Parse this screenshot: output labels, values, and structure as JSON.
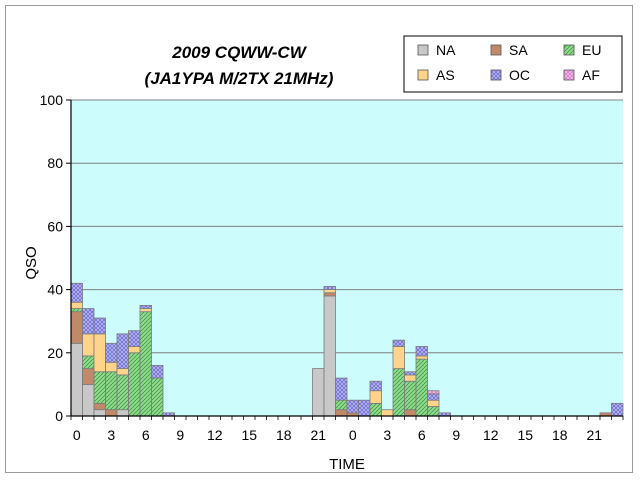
{
  "chart_data": {
    "type": "bar",
    "stacked": true,
    "title": "2009 CQWW-CW",
    "subtitle": "(JA1YPA  M/2TX  21MHz)",
    "xlabel": "TIME",
    "ylabel": "QSO",
    "ylim": [
      0,
      100
    ],
    "yticks": [
      0,
      20,
      40,
      60,
      80,
      100
    ],
    "xtick_labels": [
      "0",
      "3",
      "6",
      "9",
      "12",
      "15",
      "18",
      "21",
      "0",
      "3",
      "6",
      "9",
      "12",
      "15",
      "18",
      "21"
    ],
    "xtick_every": 3,
    "legend_position": "top-right",
    "grid": true,
    "categories": [
      "0",
      "1",
      "2",
      "3",
      "4",
      "5",
      "6",
      "7",
      "8",
      "9",
      "10",
      "11",
      "12",
      "13",
      "14",
      "15",
      "16",
      "17",
      "18",
      "19",
      "20",
      "21",
      "22",
      "23",
      "0",
      "1",
      "2",
      "3",
      "4",
      "5",
      "6",
      "7",
      "8",
      "9",
      "10",
      "11",
      "12",
      "13",
      "14",
      "15",
      "16",
      "17",
      "18",
      "19",
      "20",
      "21",
      "22",
      "23"
    ],
    "series": [
      {
        "name": "NA",
        "color": "#c8c8c8",
        "values": [
          23,
          10,
          2,
          0,
          2,
          0,
          0,
          0,
          0,
          0,
          0,
          0,
          0,
          0,
          0,
          0,
          0,
          0,
          0,
          0,
          0,
          15,
          38,
          0,
          0,
          0,
          0,
          0,
          0,
          0,
          0,
          0,
          0,
          0,
          0,
          0,
          0,
          0,
          0,
          0,
          0,
          0,
          0,
          0,
          0,
          0,
          0,
          0
        ]
      },
      {
        "name": "SA",
        "color": "#c08a6a",
        "values": [
          10,
          5,
          2,
          2,
          0,
          0,
          0,
          0,
          0,
          0,
          0,
          0,
          0,
          0,
          0,
          0,
          0,
          0,
          0,
          0,
          0,
          0,
          1,
          2,
          1,
          0,
          0,
          0,
          0,
          2,
          0,
          0,
          0,
          0,
          0,
          0,
          0,
          0,
          0,
          0,
          0,
          0,
          0,
          0,
          0,
          0,
          1,
          0
        ]
      },
      {
        "name": "EU",
        "color": "#8fdc8f",
        "values": [
          1,
          4,
          10,
          12,
          11,
          20,
          33,
          12,
          0,
          0,
          0,
          0,
          0,
          0,
          0,
          0,
          0,
          0,
          0,
          0,
          0,
          0,
          0,
          3,
          0,
          0,
          4,
          0,
          15,
          9,
          18,
          3,
          0,
          0,
          0,
          0,
          0,
          0,
          0,
          0,
          0,
          0,
          0,
          0,
          0,
          0,
          0,
          0
        ]
      },
      {
        "name": "AS",
        "color": "#ffd38a",
        "values": [
          2,
          7,
          12,
          3,
          2,
          2,
          1,
          0,
          0,
          0,
          0,
          0,
          0,
          0,
          0,
          0,
          0,
          0,
          0,
          0,
          0,
          0,
          1,
          0,
          0,
          0,
          4,
          2,
          7,
          2,
          1,
          2,
          0,
          0,
          0,
          0,
          0,
          0,
          0,
          0,
          0,
          0,
          0,
          0,
          0,
          0,
          0,
          0
        ]
      },
      {
        "name": "OC",
        "color": "#b4b4f0",
        "values": [
          6,
          8,
          5,
          6,
          11,
          5,
          1,
          4,
          1,
          0,
          0,
          0,
          0,
          0,
          0,
          0,
          0,
          0,
          0,
          0,
          0,
          0,
          1,
          7,
          4,
          5,
          3,
          0,
          2,
          1,
          3,
          2,
          1,
          0,
          0,
          0,
          0,
          0,
          0,
          0,
          0,
          0,
          0,
          0,
          0,
          0,
          0,
          4
        ]
      },
      {
        "name": "AF",
        "color": "#f0b0e8",
        "values": [
          0,
          0,
          0,
          0,
          0,
          0,
          0,
          0,
          0,
          0,
          0,
          0,
          0,
          0,
          0,
          0,
          0,
          0,
          0,
          0,
          0,
          0,
          0,
          0,
          0,
          0,
          0,
          0,
          0,
          0,
          0,
          1,
          0,
          0,
          0,
          0,
          0,
          0,
          0,
          0,
          0,
          0,
          0,
          0,
          0,
          0,
          0,
          0
        ]
      }
    ]
  },
  "colors": {
    "plot_background": "#ccfcfc",
    "gridline": "#808080",
    "bar_outline": "#7a7a7a"
  }
}
